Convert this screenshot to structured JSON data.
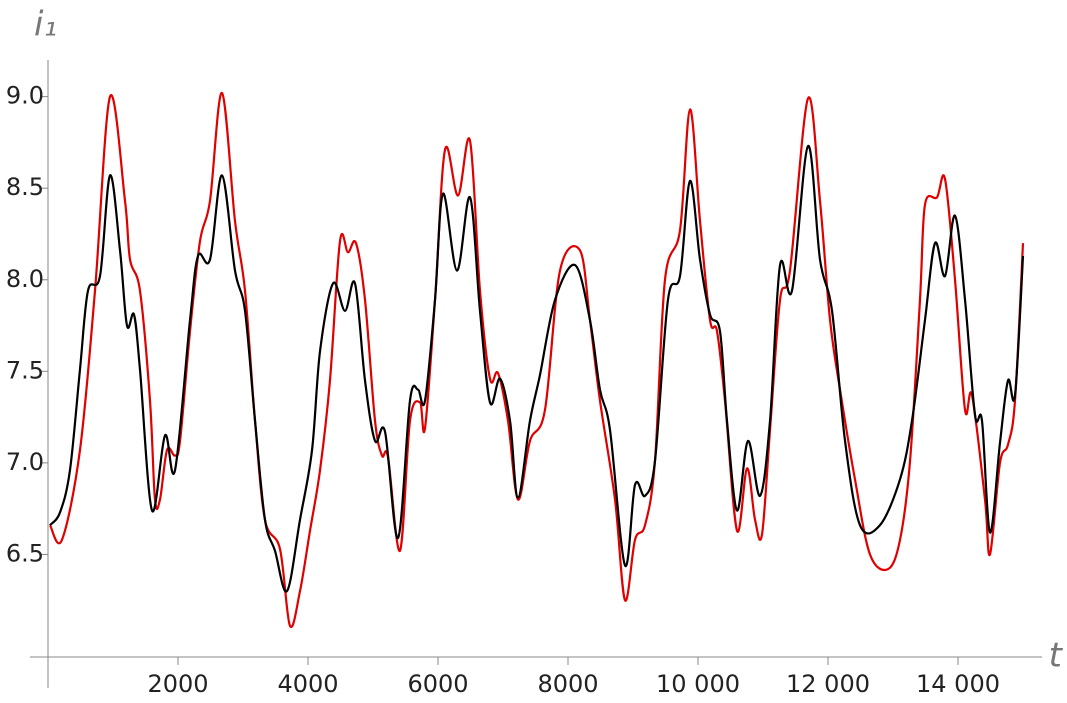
{
  "chart_data": {
    "type": "line",
    "x_label": "t",
    "y_label": "i₁",
    "xlim": [
      0,
      15000
    ],
    "ylim": [
      5.94,
      9.2
    ],
    "xticks": [
      2000,
      4000,
      6000,
      8000,
      {
        "value": 10000,
        "label": "10 000"
      },
      {
        "value": 12000,
        "label": "12 000"
      },
      {
        "value": 14000,
        "label": "14 000"
      }
    ],
    "yticks": [
      6.5,
      7.0,
      7.5,
      8.0,
      8.5,
      9.0
    ],
    "ytick_labels": [
      "6.5",
      "7.0",
      "7.5",
      "8.0",
      "8.5",
      "9.0"
    ],
    "series": [
      {
        "color": "#e00000",
        "x": [
          31,
          215,
          492,
          723,
          954,
          1185,
          1262,
          1415,
          1569,
          1646,
          1723,
          1831,
          1954,
          2031,
          2185,
          2338,
          2492,
          2677,
          2877,
          3031,
          3185,
          3338,
          3569,
          3723,
          3877,
          4031,
          4185,
          4338,
          4492,
          4615,
          4738,
          4877,
          5031,
          5138,
          5231,
          5415,
          5569,
          5723,
          5800,
          5954,
          6108,
          6308,
          6492,
          6646,
          6800,
          6923,
          7077,
          7231,
          7415,
          7646,
          7877,
          8185,
          8338,
          8492,
          8723,
          8877,
          9031,
          9185,
          9338,
          9492,
          9723,
          9877,
          10031,
          10185,
          10292,
          10415,
          10600,
          10754,
          10877,
          10985,
          11108,
          11262,
          11415,
          11692,
          11877,
          12031,
          12185,
          12415,
          12646,
          12923,
          13108,
          13262,
          13415,
          13492,
          13677,
          13800,
          13954,
          14108,
          14215,
          14415,
          14492,
          14646,
          14769,
          14877,
          15000
        ],
        "values": [
          6.66,
          6.58,
          7.07,
          7.94,
          9.0,
          8.43,
          8.11,
          7.94,
          7.34,
          6.8,
          6.8,
          7.07,
          7.04,
          7.12,
          7.72,
          8.21,
          8.43,
          9.02,
          8.32,
          7.94,
          7.23,
          6.69,
          6.53,
          6.11,
          6.3,
          6.63,
          6.96,
          7.45,
          8.21,
          8.15,
          8.2,
          7.89,
          7.23,
          7.04,
          7.03,
          6.52,
          7.23,
          7.33,
          7.19,
          7.89,
          8.71,
          8.46,
          8.76,
          7.94,
          7.46,
          7.49,
          7.23,
          6.8,
          7.12,
          7.29,
          8.05,
          8.16,
          7.78,
          7.34,
          6.8,
          6.25,
          6.58,
          6.66,
          7.01,
          8.0,
          8.27,
          8.93,
          8.32,
          7.78,
          7.72,
          7.34,
          6.63,
          6.97,
          6.69,
          6.61,
          7.18,
          7.89,
          8.05,
          8.99,
          8.43,
          7.78,
          7.4,
          6.91,
          6.5,
          6.42,
          6.58,
          7.01,
          7.89,
          8.41,
          8.45,
          8.55,
          8.0,
          7.29,
          7.37,
          6.8,
          6.5,
          7.0,
          7.1,
          7.34,
          8.2
        ]
      },
      {
        "color": "#000000",
        "x": [
          31,
          185,
          338,
          492,
          615,
          800,
          954,
          1108,
          1215,
          1323,
          1415,
          1600,
          1800,
          1954,
          2185,
          2308,
          2492,
          2677,
          2877,
          3031,
          3185,
          3338,
          3492,
          3677,
          3877,
          4062,
          4185,
          4385,
          4569,
          4723,
          4877,
          5031,
          5185,
          5385,
          5569,
          5692,
          5800,
          5954,
          6077,
          6292,
          6492,
          6646,
          6800,
          6954,
          7108,
          7231,
          7415,
          7569,
          7800,
          8108,
          8338,
          8492,
          8646,
          8877,
          9031,
          9185,
          9338,
          9538,
          9723,
          9877,
          10031,
          10185,
          10338,
          10446,
          10600,
          10769,
          10954,
          11108,
          11262,
          11446,
          11692,
          11877,
          12062,
          12262,
          12492,
          12800,
          13108,
          13292,
          13492,
          13646,
          13800,
          13954,
          14108,
          14262,
          14369,
          14492,
          14646,
          14769,
          14877,
          15000
        ],
        "values": [
          6.66,
          6.73,
          6.96,
          7.51,
          7.94,
          8.02,
          8.57,
          8.16,
          7.75,
          7.81,
          7.51,
          6.74,
          7.15,
          6.96,
          7.78,
          8.13,
          8.11,
          8.57,
          8.05,
          7.83,
          7.23,
          6.69,
          6.52,
          6.3,
          6.69,
          7.07,
          7.61,
          7.98,
          7.83,
          7.98,
          7.45,
          7.12,
          7.17,
          6.59,
          7.34,
          7.4,
          7.34,
          7.89,
          8.47,
          8.05,
          8.45,
          7.83,
          7.33,
          7.46,
          7.23,
          6.81,
          7.23,
          7.48,
          7.89,
          8.08,
          7.78,
          7.4,
          7.18,
          6.44,
          6.88,
          6.82,
          7.01,
          7.89,
          8.02,
          8.54,
          8.11,
          7.81,
          7.72,
          7.23,
          6.74,
          7.12,
          6.82,
          7.23,
          8.08,
          7.94,
          8.73,
          8.11,
          7.83,
          7.12,
          6.66,
          6.66,
          6.91,
          7.23,
          7.78,
          8.2,
          8.02,
          8.35,
          7.89,
          7.26,
          7.23,
          6.62,
          7.11,
          7.45,
          7.37,
          8.13
        ]
      }
    ]
  }
}
